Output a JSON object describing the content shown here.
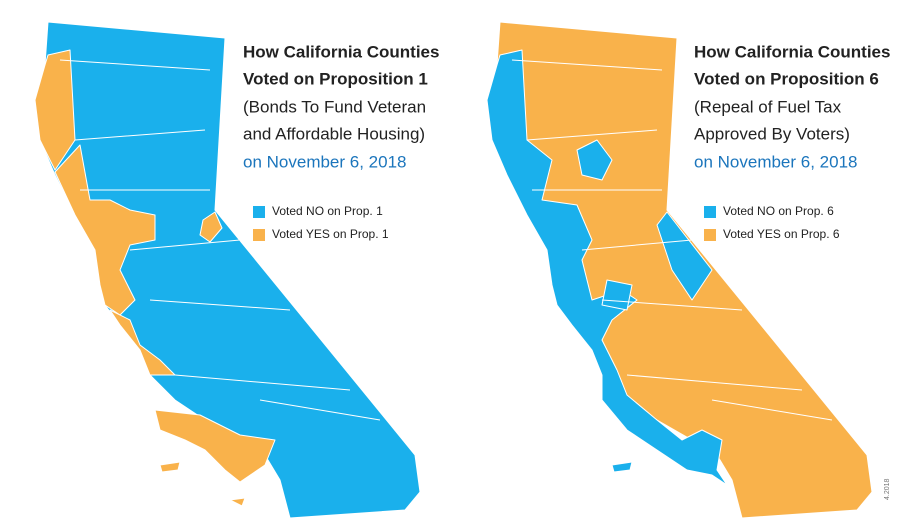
{
  "maps": [
    {
      "title": [
        "How California Counties",
        "Voted on Proposition 1"
      ],
      "subtitle": [
        "(Bonds To Fund Veteran",
        "and Affordable Housing)"
      ],
      "date": "on November 6, 2018",
      "legend": [
        {
          "label": "Voted NO on Prop. 1",
          "color": "#1ab0ec"
        },
        {
          "label": "Voted YES on Prop. 1",
          "color": "#f9b24b"
        }
      ]
    },
    {
      "title": [
        "How California Counties",
        "Voted on Proposition 6"
      ],
      "subtitle": [
        "(Repeal of Fuel Tax",
        "Approved By Voters)"
      ],
      "date": "on November 6, 2018",
      "legend": [
        {
          "label": "Voted NO on Prop. 6",
          "color": "#1ab0ec"
        },
        {
          "label": "Voted YES on Prop. 6",
          "color": "#f9b24b"
        }
      ]
    }
  ],
  "footnote": "4.2018"
}
